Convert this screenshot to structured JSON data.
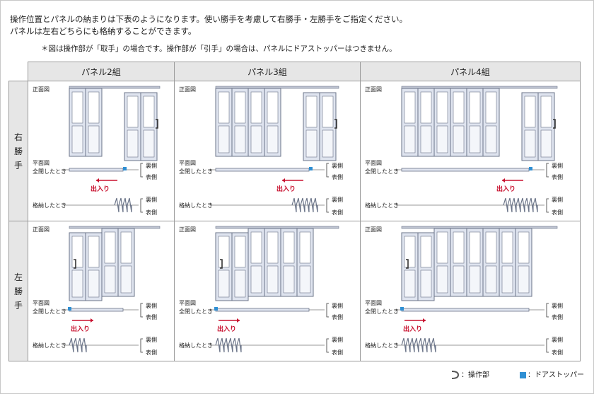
{
  "intro": {
    "line1": "操作位置とパネルの納まりは下表のようになります。使い勝手を考慮して右勝手・左勝手をご指定ください。",
    "line2": "パネルは左右どちらにも格納することができます。",
    "note": "＊図は操作部が「取手」の場合です。操作部が「引手」の場合は、パネルにドアストッパーはつきません。"
  },
  "columns": [
    "パネル2組",
    "パネル3組",
    "パネル4組"
  ],
  "rows": [
    {
      "label": "右勝手",
      "side": "right"
    },
    {
      "label": "左勝手",
      "side": "left"
    }
  ],
  "cell_labels": {
    "front": "正面図",
    "plan": "平面図",
    "closed": "全閉したとき",
    "stored": "格納したとき",
    "back": "裏側",
    "front_side": "表側",
    "in_out": "出入り"
  },
  "legend": {
    "handle_label": "：操作部",
    "stopper_label": "：ドアストッパー"
  },
  "colors": {
    "panel_fill": "#dfe4ef",
    "panel_stroke": "#6b7488",
    "arrow": "#c8102e",
    "stopper": "#2f8fd3"
  }
}
